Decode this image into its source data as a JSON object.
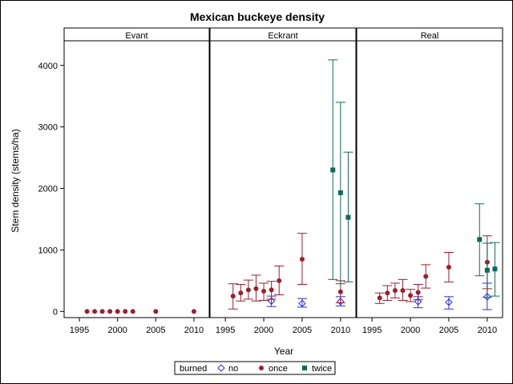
{
  "chart_data": {
    "type": "scatter",
    "title": "Mexican buckeye density",
    "xlabel": "Year",
    "ylabel": "Stem density (stems/ha)",
    "xlim": [
      1993,
      2012
    ],
    "ylim": [
      -100,
      4400
    ],
    "xticks": [
      1995,
      2000,
      2005,
      2010
    ],
    "yticks": [
      0,
      1000,
      2000,
      3000,
      4000
    ],
    "panels": [
      "Evant",
      "Eckrant",
      "Real"
    ],
    "legend": {
      "title": "burned",
      "position": "bottom",
      "entries": [
        "no",
        "once",
        "twice"
      ]
    },
    "colors": {
      "no": "#2a2ae0",
      "once": "#a01c2c",
      "twice": "#0e6a5a"
    },
    "series": [
      {
        "name": "no",
        "marker": "diamond",
        "points": [
          {
            "panel": "Eckrant",
            "x": 2001,
            "y": 170,
            "lo": 80,
            "hi": 250
          },
          {
            "panel": "Eckrant",
            "x": 2005,
            "y": 130,
            "lo": 70,
            "hi": 210
          },
          {
            "panel": "Eckrant",
            "x": 2010,
            "y": 160,
            "lo": 90,
            "hi": 240
          },
          {
            "panel": "Real",
            "x": 2001,
            "y": 160,
            "lo": 60,
            "hi": 240
          },
          {
            "panel": "Real",
            "x": 2005,
            "y": 150,
            "lo": 40,
            "hi": 240
          },
          {
            "panel": "Real",
            "x": 2010,
            "y": 240,
            "lo": 30,
            "hi": 460
          }
        ]
      },
      {
        "name": "once",
        "marker": "circle",
        "points": [
          {
            "panel": "Evant",
            "x": 1996,
            "y": 0,
            "lo": 0,
            "hi": 0
          },
          {
            "panel": "Evant",
            "x": 1997,
            "y": 0,
            "lo": 0,
            "hi": 0
          },
          {
            "panel": "Evant",
            "x": 1998,
            "y": 0,
            "lo": 0,
            "hi": 0
          },
          {
            "panel": "Evant",
            "x": 1999,
            "y": 0,
            "lo": 0,
            "hi": 0
          },
          {
            "panel": "Evant",
            "x": 2000,
            "y": 0,
            "lo": 0,
            "hi": 0
          },
          {
            "panel": "Evant",
            "x": 2001,
            "y": 0,
            "lo": 0,
            "hi": 0
          },
          {
            "panel": "Evant",
            "x": 2002,
            "y": 0,
            "lo": 0,
            "hi": 0
          },
          {
            "panel": "Evant",
            "x": 2005,
            "y": 0,
            "lo": 0,
            "hi": 0
          },
          {
            "panel": "Evant",
            "x": 2010,
            "y": 0,
            "lo": 0,
            "hi": 0
          },
          {
            "panel": "Eckrant",
            "x": 1996,
            "y": 250,
            "lo": 40,
            "hi": 450
          },
          {
            "panel": "Eckrant",
            "x": 1997,
            "y": 300,
            "lo": 170,
            "hi": 440
          },
          {
            "panel": "Eckrant",
            "x": 1998,
            "y": 350,
            "lo": 200,
            "hi": 510
          },
          {
            "panel": "Eckrant",
            "x": 1999,
            "y": 370,
            "lo": 170,
            "hi": 590
          },
          {
            "panel": "Eckrant",
            "x": 2000,
            "y": 330,
            "lo": 180,
            "hi": 460
          },
          {
            "panel": "Eckrant",
            "x": 2001,
            "y": 350,
            "lo": 200,
            "hi": 490
          },
          {
            "panel": "Eckrant",
            "x": 2002,
            "y": 500,
            "lo": 270,
            "hi": 740
          },
          {
            "panel": "Eckrant",
            "x": 2005,
            "y": 850,
            "lo": 440,
            "hi": 1270
          },
          {
            "panel": "Eckrant",
            "x": 2010,
            "y": 320,
            "lo": 140,
            "hi": 500
          },
          {
            "panel": "Real",
            "x": 1996,
            "y": 220,
            "lo": 130,
            "hi": 300
          },
          {
            "panel": "Real",
            "x": 1997,
            "y": 300,
            "lo": 180,
            "hi": 420
          },
          {
            "panel": "Real",
            "x": 1998,
            "y": 340,
            "lo": 220,
            "hi": 460
          },
          {
            "panel": "Real",
            "x": 1999,
            "y": 340,
            "lo": 180,
            "hi": 520
          },
          {
            "panel": "Real",
            "x": 2000,
            "y": 260,
            "lo": 160,
            "hi": 360
          },
          {
            "panel": "Real",
            "x": 2001,
            "y": 310,
            "lo": 190,
            "hi": 440
          },
          {
            "panel": "Real",
            "x": 2002,
            "y": 570,
            "lo": 380,
            "hi": 760
          },
          {
            "panel": "Real",
            "x": 2005,
            "y": 720,
            "lo": 480,
            "hi": 960
          },
          {
            "panel": "Real",
            "x": 2010,
            "y": 800,
            "lo": 370,
            "hi": 1230
          }
        ]
      },
      {
        "name": "twice",
        "marker": "square",
        "points": [
          {
            "panel": "Eckrant",
            "x": 2009,
            "y": 2300,
            "lo": 520,
            "hi": 4090
          },
          {
            "panel": "Eckrant",
            "x": 2010,
            "y": 1930,
            "lo": 450,
            "hi": 3400
          },
          {
            "panel": "Eckrant",
            "x": 2011,
            "y": 1530,
            "lo": 480,
            "hi": 2590
          },
          {
            "panel": "Real",
            "x": 2009,
            "y": 1170,
            "lo": 580,
            "hi": 1750
          },
          {
            "panel": "Real",
            "x": 2010,
            "y": 670,
            "lo": 230,
            "hi": 1110
          },
          {
            "panel": "Real",
            "x": 2011,
            "y": 690,
            "lo": 250,
            "hi": 1120
          }
        ]
      }
    ]
  }
}
